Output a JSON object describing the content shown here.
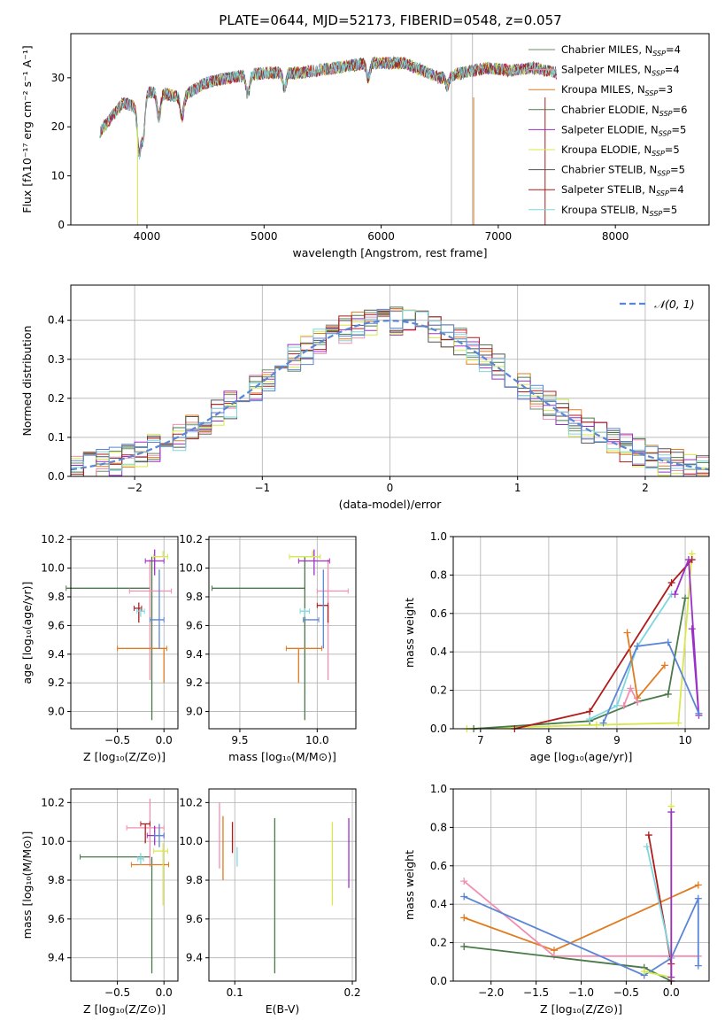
{
  "title": "PLATE=0644, MJD=52173, FIBERID=0548, z=0.057",
  "colors": {
    "Chabrier MILES": "#6b8e6b",
    "Salpeter MILES": "#f28eb2",
    "Kroupa MILES": "#e07b20",
    "Chabrier ELODIE": "#4a7a4a",
    "Salpeter ELODIE": "#9b30c8",
    "Kroupa ELODIE": "#d7e84a",
    "Chabrier STELIB": "#555555",
    "Salpeter STELIB": "#b01c1c",
    "Kroupa STELIB": "#7fd6de",
    "blue": "#5b86d6",
    "normal": "#5b86d6"
  },
  "chart_data": [
    {
      "id": "spectrum",
      "type": "line",
      "xlabel": "wavelength [Angstrom, rest frame]",
      "ylabel": "Flux [fλ10⁻¹⁷ erg cm⁻² s⁻¹ A⁻¹]",
      "xlim": [
        3350,
        8800
      ],
      "ylim": [
        0,
        39
      ],
      "xticks": [
        4000,
        5000,
        6000,
        7000,
        8000
      ],
      "yticks": [
        0,
        10,
        20,
        30
      ],
      "legend_position": "top-right",
      "legend": [
        {
          "label": "Chabrier MILES, N",
          "sub": "SSP",
          "post": "=4",
          "color": "Chabrier MILES"
        },
        {
          "label": "Salpeter MILES, N",
          "sub": "SSP",
          "post": "=4",
          "color": "Salpeter MILES"
        },
        {
          "label": "Kroupa MILES, N",
          "sub": "SSP",
          "post": "=3",
          "color": "Kroupa MILES"
        },
        {
          "label": "Chabrier ELODIE, N",
          "sub": "SSP",
          "post": "=6",
          "color": "Chabrier ELODIE"
        },
        {
          "label": "Salpeter ELODIE, N",
          "sub": "SSP",
          "post": "=5",
          "color": "Salpeter ELODIE"
        },
        {
          "label": "Kroupa ELODIE, N",
          "sub": "SSP",
          "post": "=5",
          "color": "Kroupa ELODIE"
        },
        {
          "label": "Chabrier STELIB, N",
          "sub": "SSP",
          "post": "=5",
          "color": "Chabrier STELIB"
        },
        {
          "label": "Salpeter STELIB, N",
          "sub": "SSP",
          "post": "=4",
          "color": "Salpeter STELIB"
        },
        {
          "label": "Kroupa STELIB, N",
          "sub": "SSP",
          "post": "=5",
          "color": "Kroupa STELIB"
        }
      ],
      "continuum": [
        [
          3600,
          19
        ],
        [
          3700,
          22
        ],
        [
          3800,
          25
        ],
        [
          3900,
          24
        ],
        [
          4000,
          27
        ],
        [
          4100,
          27
        ],
        [
          4300,
          26
        ],
        [
          4500,
          29
        ],
        [
          4700,
          30
        ],
        [
          5000,
          31
        ],
        [
          5300,
          31
        ],
        [
          5600,
          32
        ],
        [
          5900,
          33
        ],
        [
          6200,
          33
        ],
        [
          6500,
          30
        ],
        [
          6700,
          31
        ],
        [
          6900,
          32
        ],
        [
          7100,
          31.5
        ],
        [
          7300,
          32
        ],
        [
          7500,
          31
        ]
      ],
      "model_extent": {
        "Kroupa MILES": 7400,
        "Salpeter MILES": 7400,
        "Chabrier MILES": 7400
      },
      "gap_lines": [
        6600,
        6780
      ]
    },
    {
      "id": "residuals",
      "type": "histogram",
      "xlabel": "(data-model)/error",
      "ylabel": "Normed distribution",
      "xlim": [
        -2.5,
        2.5
      ],
      "ylim": [
        0,
        0.49
      ],
      "xticks": [
        -2,
        -1,
        0,
        1,
        2
      ],
      "yticks": [
        0.0,
        0.1,
        0.2,
        0.3,
        0.4
      ],
      "bin_width": 0.1,
      "legend_position": "top-right",
      "reference_label": "𝒩(0, 1)"
    },
    {
      "id": "age_vs_Z",
      "type": "errorbar",
      "xlabel": "Z [log₁₀(Z/Z⊙)]",
      "ylabel": "age  [log₁₀(age/yr)]",
      "xlim": [
        -1.0,
        0.15
      ],
      "ylim": [
        8.88,
        10.22
      ],
      "xticks": [
        -0.5,
        0.0
      ],
      "yticks": [
        9.0,
        9.2,
        9.4,
        9.6,
        9.8,
        10.0,
        10.2
      ],
      "points": [
        {
          "x": -0.15,
          "xerr": [
            0.9,
            0.0
          ],
          "y": 9.86,
          "yerr": [
            0.0,
            0.0
          ],
          "c": "Chabrier ELODIE"
        },
        {
          "x": -0.13,
          "xerr": [
            0.0,
            0.0
          ],
          "y": 9.68,
          "yerr": [
            0.74,
            0.4
          ],
          "c": "Chabrier ELODIE"
        },
        {
          "x": -0.02,
          "xerr": [
            0.35,
            0.1
          ],
          "y": 9.84,
          "yerr": [
            0.0,
            0.0
          ],
          "c": "Salpeter MILES"
        },
        {
          "x": -0.15,
          "xerr": [
            0.0,
            0.0
          ],
          "y": 9.84,
          "yerr": [
            0.62,
            0.22
          ],
          "c": "Salpeter MILES"
        },
        {
          "x": -0.05,
          "xerr": [
            0.45,
            0.08
          ],
          "y": 9.44,
          "yerr": [
            0.0,
            0.0
          ],
          "c": "Kroupa MILES"
        },
        {
          "x": 0.0,
          "xerr": [
            0.0,
            0.0
          ],
          "y": 9.44,
          "yerr": [
            0.24,
            0.0
          ],
          "c": "Kroupa MILES"
        },
        {
          "x": -0.1,
          "xerr": [
            0.1,
            0.1
          ],
          "y": 10.05,
          "yerr": [
            0.1,
            0.08
          ],
          "c": "Salpeter ELODIE"
        },
        {
          "x": -0.01,
          "xerr": [
            0.1,
            0.05
          ],
          "y": 10.08,
          "yerr": [
            0.0,
            0.04
          ],
          "c": "Kroupa ELODIE"
        },
        {
          "x": -0.27,
          "xerr": [
            0.05,
            0.03
          ],
          "y": 9.72,
          "yerr": [
            0.1,
            0.04
          ],
          "c": "Salpeter STELIB"
        },
        {
          "x": -0.05,
          "xerr": [
            0.1,
            0.05
          ],
          "y": 9.64,
          "yerr": [
            0.2,
            0.35
          ],
          "c": "blue"
        },
        {
          "x": -0.25,
          "xerr": [
            0.04,
            0.04
          ],
          "y": 9.7,
          "yerr": [
            0.04,
            0.02
          ],
          "c": "Kroupa STELIB"
        }
      ]
    },
    {
      "id": "age_vs_mass",
      "type": "errorbar",
      "xlabel": "mass [log₁₀(M/M⊙)]",
      "ylabel": "",
      "xlim": [
        9.3,
        10.25
      ],
      "ylim": [
        8.88,
        10.22
      ],
      "xticks": [
        9.5,
        10.0
      ],
      "yticks": [
        9.0,
        9.2,
        9.4,
        9.6,
        9.8,
        10.0,
        10.2
      ],
      "points": [
        {
          "x": 9.92,
          "xerr": [
            0.6,
            0.0
          ],
          "y": 9.86,
          "yerr": [
            0.0,
            0.0
          ],
          "c": "Chabrier ELODIE"
        },
        {
          "x": 9.92,
          "xerr": [
            0.0,
            0.0
          ],
          "y": 9.68,
          "yerr": [
            0.74,
            0.4
          ],
          "c": "Chabrier ELODIE"
        },
        {
          "x": 10.0,
          "xerr": [
            0.0,
            0.2
          ],
          "y": 9.84,
          "yerr": [
            0.0,
            0.0
          ],
          "c": "Salpeter MILES"
        },
        {
          "x": 10.07,
          "xerr": [
            0.0,
            0.0
          ],
          "y": 9.84,
          "yerr": [
            0.62,
            0.22
          ],
          "c": "Salpeter MILES"
        },
        {
          "x": 9.88,
          "xerr": [
            0.08,
            0.15
          ],
          "y": 9.44,
          "yerr": [
            0.0,
            0.0
          ],
          "c": "Kroupa MILES"
        },
        {
          "x": 9.88,
          "xerr": [
            0.0,
            0.0
          ],
          "y": 9.44,
          "yerr": [
            0.24,
            0.0
          ],
          "c": "Kroupa MILES"
        },
        {
          "x": 9.98,
          "xerr": [
            0.1,
            0.1
          ],
          "y": 10.05,
          "yerr": [
            0.1,
            0.08
          ],
          "c": "Salpeter ELODIE"
        },
        {
          "x": 9.97,
          "xerr": [
            0.15,
            0.05
          ],
          "y": 10.08,
          "yerr": [
            0.0,
            0.04
          ],
          "c": "Kroupa ELODIE"
        },
        {
          "x": 10.07,
          "xerr": [
            0.07,
            0.0
          ],
          "y": 9.74,
          "yerr": [
            0.12,
            0.0
          ],
          "c": "Salpeter STELIB"
        },
        {
          "x": 10.04,
          "xerr": [
            0.0,
            0.0
          ],
          "y": 9.64,
          "yerr": [
            0.2,
            0.35
          ],
          "c": "blue"
        },
        {
          "x": 9.95,
          "xerr": [
            0.04,
            0.06
          ],
          "y": 9.64,
          "yerr": [
            0.0,
            0.0
          ],
          "c": "blue"
        },
        {
          "x": 9.92,
          "xerr": [
            0.03,
            0.03
          ],
          "y": 9.7,
          "yerr": [
            0.04,
            0.02
          ],
          "c": "Kroupa STELIB"
        }
      ]
    },
    {
      "id": "weight_vs_age",
      "type": "line",
      "xlabel": "age  [log₁₀(age/yr)]",
      "ylabel": "mass weight",
      "xlim": [
        6.6,
        10.35
      ],
      "ylim": [
        0,
        1
      ],
      "xticks": [
        7,
        8,
        9,
        10
      ],
      "yticks": [
        0.0,
        0.2,
        0.4,
        0.6,
        0.8,
        1.0
      ],
      "series": [
        {
          "c": "Kroupa ELODIE",
          "x": [
            6.8,
            8.7,
            9.9,
            10.1
          ],
          "y": [
            0.0,
            0.02,
            0.03,
            0.91
          ]
        },
        {
          "c": "Chabrier ELODIE",
          "x": [
            6.9,
            8.6,
            9.3,
            9.75,
            10.0
          ],
          "y": [
            0.0,
            0.04,
            0.14,
            0.18,
            0.68
          ]
        },
        {
          "c": "Salpeter STELIB",
          "x": [
            7.5,
            8.6,
            9.8,
            10.1
          ],
          "y": [
            0.0,
            0.09,
            0.76,
            0.88
          ]
        },
        {
          "c": "Kroupa STELIB",
          "x": [
            8.6,
            9.0,
            9.3,
            9.8
          ],
          "y": [
            0.05,
            0.12,
            0.43,
            0.7
          ]
        },
        {
          "c": "Salpeter ELODIE",
          "x": [
            9.85,
            10.05,
            10.2,
            10.1
          ],
          "y": [
            0.7,
            0.88,
            0.07,
            0.52
          ]
        },
        {
          "c": "blue",
          "x": [
            8.8,
            9.3,
            9.75,
            10.2
          ],
          "y": [
            0.03,
            0.43,
            0.45,
            0.08
          ]
        },
        {
          "c": "Kroupa MILES",
          "x": [
            9.15,
            9.3,
            9.7
          ],
          "y": [
            0.5,
            0.16,
            0.33
          ]
        },
        {
          "c": "Salpeter MILES",
          "x": [
            9.1,
            9.2,
            9.3
          ],
          "y": [
            0.12,
            0.21,
            0.14
          ]
        }
      ]
    },
    {
      "id": "mass_vs_Z",
      "type": "errorbar",
      "xlabel": "Z [log₁₀(Z/Z⊙)]",
      "ylabel": "mass [log₁₀(M/M⊙)]",
      "xlim": [
        -1.0,
        0.15
      ],
      "ylim": [
        9.28,
        10.27
      ],
      "xticks": [
        -0.5,
        0.0
      ],
      "yticks": [
        9.4,
        9.6,
        9.8,
        10.0,
        10.2
      ],
      "points": [
        {
          "x": -0.15,
          "xerr": [
            0.75,
            0.0
          ],
          "y": 9.92,
          "yerr": [
            0.0,
            0.0
          ],
          "c": "Chabrier ELODIE"
        },
        {
          "x": -0.13,
          "xerr": [
            0.0,
            0.0
          ],
          "y": 9.92,
          "yerr": [
            0.6,
            0.0
          ],
          "c": "Chabrier ELODIE"
        },
        {
          "x": -0.15,
          "xerr": [
            0.25,
            0.15
          ],
          "y": 10.07,
          "yerr": [
            0.2,
            0.15
          ],
          "c": "Salpeter MILES"
        },
        {
          "x": -0.05,
          "xerr": [
            0.3,
            0.1
          ],
          "y": 9.88,
          "yerr": [
            0.0,
            0.0
          ],
          "c": "Kroupa MILES"
        },
        {
          "x": -0.1,
          "xerr": [
            0.08,
            0.1
          ],
          "y": 10.03,
          "yerr": [
            0.05,
            0.05
          ],
          "c": "Salpeter ELODIE"
        },
        {
          "x": -0.01,
          "xerr": [
            0.1,
            0.05
          ],
          "y": 9.95,
          "yerr": [
            0.28,
            0.04
          ],
          "c": "Kroupa ELODIE"
        },
        {
          "x": -0.2,
          "xerr": [
            0.05,
            0.05
          ],
          "y": 10.09,
          "yerr": [
            0.1,
            0.0
          ],
          "c": "Salpeter STELIB"
        },
        {
          "x": -0.05,
          "xerr": [
            0.05,
            0.05
          ],
          "y": 10.03,
          "yerr": [
            0.06,
            0.06
          ],
          "c": "blue"
        },
        {
          "x": -0.25,
          "xerr": [
            0.03,
            0.03
          ],
          "y": 9.91,
          "yerr": [
            0.03,
            0.03
          ],
          "c": "Kroupa STELIB"
        }
      ]
    },
    {
      "id": "mass_vs_EBV",
      "type": "errorbar",
      "xlabel": "E(B-V)",
      "ylabel": "",
      "xlim": [
        0.078,
        0.203
      ],
      "ylim": [
        9.28,
        10.27
      ],
      "xticks": [
        0.1,
        0.2
      ],
      "yticks": [
        9.4,
        9.6,
        9.8,
        10.0,
        10.2
      ],
      "points": [
        {
          "x": 0.087,
          "xerr": [
            0.0,
            0.0
          ],
          "y": 10.0,
          "yerr": [
            0.14,
            0.2
          ],
          "c": "Salpeter MILES"
        },
        {
          "x": 0.09,
          "xerr": [
            0.0,
            0.0
          ],
          "y": 9.97,
          "yerr": [
            0.17,
            0.16
          ],
          "c": "Kroupa MILES"
        },
        {
          "x": 0.098,
          "xerr": [
            0.0,
            0.0
          ],
          "y": 10.0,
          "yerr": [
            0.06,
            0.1
          ],
          "c": "Salpeter STELIB"
        },
        {
          "x": 0.102,
          "xerr": [
            0.0,
            0.0
          ],
          "y": 9.92,
          "yerr": [
            0.05,
            0.05
          ],
          "c": "Kroupa STELIB"
        },
        {
          "x": 0.134,
          "xerr": [
            0.0,
            0.0
          ],
          "y": 9.72,
          "yerr": [
            0.4,
            0.4
          ],
          "c": "Chabrier ELODIE"
        },
        {
          "x": 0.183,
          "xerr": [
            0.0,
            0.0
          ],
          "y": 9.88,
          "yerr": [
            0.21,
            0.22
          ],
          "c": "Kroupa ELODIE"
        },
        {
          "x": 0.197,
          "xerr": [
            0.0,
            0.0
          ],
          "y": 9.94,
          "yerr": [
            0.18,
            0.18
          ],
          "c": "Salpeter ELODIE"
        }
      ]
    },
    {
      "id": "weight_vs_Z",
      "type": "line",
      "xlabel": "Z [log₁₀(Z/Z⊙)]",
      "ylabel": "mass weight",
      "xlim": [
        -2.42,
        0.42
      ],
      "ylim": [
        0,
        1
      ],
      "xticks": [
        -2.0,
        -1.5,
        -1.0,
        -0.5,
        0.0
      ],
      "yticks": [
        0.0,
        0.2,
        0.4,
        0.6,
        0.8,
        1.0
      ],
      "series": [
        {
          "c": "Kroupa MILES",
          "x": [
            -2.3,
            -1.3,
            0.3
          ],
          "y": [
            0.33,
            0.16,
            0.5
          ]
        },
        {
          "c": "Salpeter MILES",
          "x": [
            -2.3,
            -1.3,
            0.3
          ],
          "y": [
            0.52,
            0.13,
            0.13
          ]
        },
        {
          "c": "Chabrier ELODIE",
          "x": [
            -2.3,
            -0.3,
            0.0
          ],
          "y": [
            0.18,
            0.07,
            0.0
          ]
        },
        {
          "c": "blue",
          "x": [
            -2.3,
            -0.3,
            0.0,
            0.3,
            0.3
          ],
          "y": [
            0.44,
            0.03,
            0.12,
            0.43,
            0.08
          ]
        },
        {
          "c": "Salpeter STELIB",
          "x": [
            -0.25,
            0.0,
            0.0
          ],
          "y": [
            0.76,
            0.09,
            0.0
          ]
        },
        {
          "c": "Kroupa STELIB",
          "x": [
            -0.27,
            0.0
          ],
          "y": [
            0.7,
            0.12
          ]
        },
        {
          "c": "Kroupa ELODIE",
          "x": [
            0.0,
            0.0,
            -0.3
          ],
          "y": [
            0.91,
            0.02,
            0.05
          ]
        },
        {
          "c": "Salpeter ELODIE",
          "x": [
            0.0,
            0.0
          ],
          "y": [
            0.88,
            0.02
          ]
        }
      ]
    }
  ]
}
